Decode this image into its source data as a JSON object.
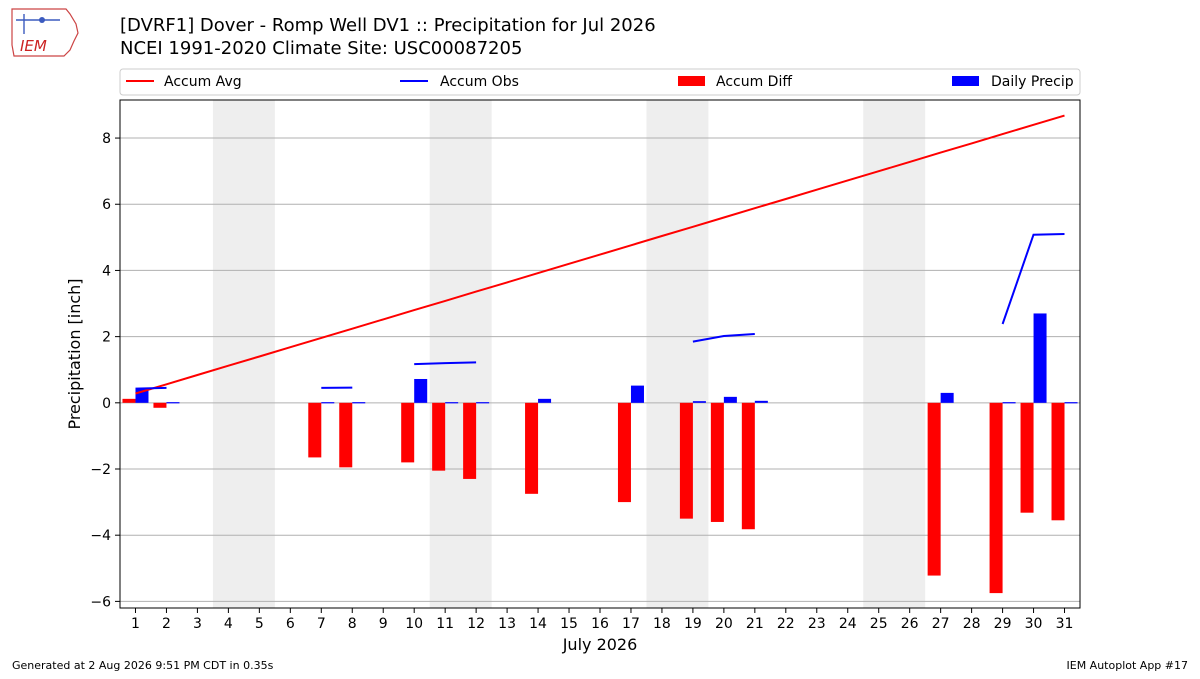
{
  "header": {
    "title": "[DVRF1] Dover - Romp Well DV1 :: Precipitation for Jul 2026",
    "subtitle": "NCEI 1991-2020 Climate Site: USC00087205",
    "logo_text": "IEM"
  },
  "footer": {
    "generated": "Generated at 2 Aug 2026 9:51 PM CDT in 0.35s",
    "app": "IEM Autoplot App #17"
  },
  "chart_data": {
    "type": "bar",
    "xlabel": "July 2026",
    "ylabel": "Precipitation [inch]",
    "x": [
      1,
      2,
      3,
      4,
      5,
      6,
      7,
      8,
      9,
      10,
      11,
      12,
      13,
      14,
      15,
      16,
      17,
      18,
      19,
      20,
      21,
      22,
      23,
      24,
      25,
      26,
      27,
      28,
      29,
      30,
      31
    ],
    "xlim": [
      0.5,
      31.5
    ],
    "ylim": [
      -6.2,
      9.15
    ],
    "yticks": [
      -6,
      -4,
      -2,
      0,
      2,
      4,
      6,
      8
    ],
    "ytick_labels": [
      "−6",
      "−4",
      "−2",
      "0",
      "2",
      "4",
      "6",
      "8"
    ],
    "grid": "horizontal",
    "legend_position": "top",
    "weekend_shading": [
      [
        4,
        5
      ],
      [
        11,
        12
      ],
      [
        18,
        19
      ],
      [
        25,
        26
      ]
    ],
    "legend": [
      "Accum Avg",
      "Accum Obs",
      "Accum Diff",
      "Daily Precip"
    ],
    "series": [
      {
        "name": "Accum Avg",
        "kind": "line",
        "color": "#ff0000",
        "values": [
          0.28,
          0.56,
          0.84,
          1.12,
          1.4,
          1.68,
          1.96,
          2.24,
          2.52,
          2.8,
          3.08,
          3.36,
          3.64,
          3.92,
          4.2,
          4.48,
          4.76,
          5.04,
          5.32,
          5.6,
          5.88,
          6.16,
          6.44,
          6.72,
          7.0,
          7.28,
          7.56,
          7.84,
          8.12,
          8.4,
          8.68
        ]
      },
      {
        "name": "Accum Obs",
        "kind": "line",
        "color": "#0000ff",
        "values": [
          0.43,
          0.45,
          null,
          null,
          null,
          null,
          0.45,
          0.46,
          null,
          1.17,
          1.2,
          1.22,
          null,
          null,
          null,
          null,
          null,
          null,
          1.85,
          2.02,
          2.08,
          null,
          null,
          null,
          null,
          null,
          null,
          null,
          2.38,
          5.08,
          5.1
        ]
      },
      {
        "name": "Accum Diff",
        "kind": "bar",
        "color": "#ff0000",
        "values": [
          0.12,
          -0.15,
          null,
          null,
          null,
          null,
          -1.65,
          -1.95,
          null,
          -1.8,
          -2.05,
          -2.3,
          null,
          -2.75,
          null,
          null,
          -3.0,
          null,
          -3.5,
          -3.6,
          -3.82,
          null,
          null,
          null,
          null,
          null,
          -5.22,
          null,
          -5.75,
          -3.32,
          -3.55
        ]
      },
      {
        "name": "Daily Precip",
        "kind": "bar",
        "color": "#0000ff",
        "values": [
          0.43,
          0.02,
          null,
          null,
          null,
          null,
          0.02,
          0.02,
          null,
          0.72,
          0.02,
          0.02,
          null,
          0.12,
          null,
          null,
          0.52,
          null,
          0.05,
          0.18,
          0.06,
          null,
          null,
          null,
          null,
          null,
          0.3,
          null,
          0.02,
          2.7,
          0.02
        ]
      }
    ]
  }
}
